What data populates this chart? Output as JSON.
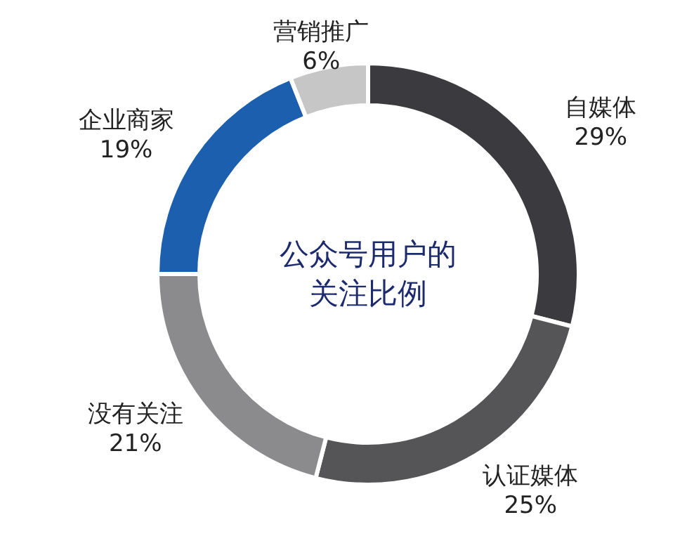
{
  "chart_data": {
    "type": "donut",
    "title": "公众号用户的关注比例",
    "categories": [
      "自媒体",
      "认证媒体",
      "没有关注",
      "企业商家",
      "营销推广"
    ],
    "values": [
      29,
      25,
      21,
      19,
      6
    ],
    "value_labels": [
      "29%",
      "25%",
      "21%",
      "19%",
      "6%"
    ],
    "colors": [
      "#3b3a3e",
      "#555558",
      "#8b8b8d",
      "#1b5fae",
      "#c6c6c6"
    ]
  }
}
